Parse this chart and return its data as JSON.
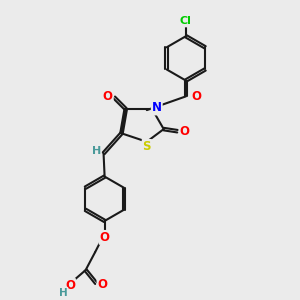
{
  "bg_color": "#ebebeb",
  "bond_color": "#1a1a1a",
  "bond_width": 1.5,
  "atom_colors": {
    "O": "#ff0000",
    "N": "#0000ff",
    "S": "#cccc00",
    "Cl": "#00cc00",
    "C": "#1a1a1a",
    "H": "#4a9a9a"
  }
}
